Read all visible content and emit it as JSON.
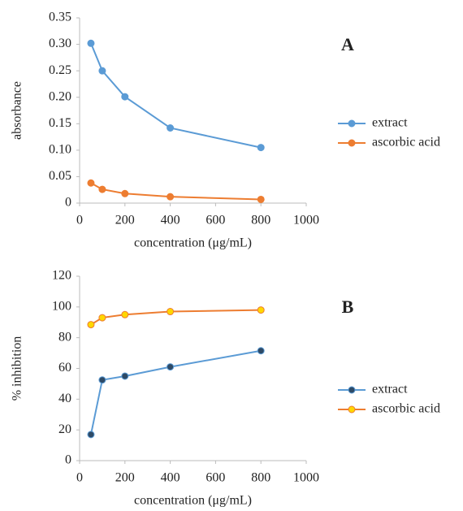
{
  "chart_data": [
    {
      "type": "line",
      "annotation": "A",
      "xlabel": "concentration (μg/mL)",
      "ylabel": "absorbance",
      "x": [
        50,
        100,
        200,
        400,
        800
      ],
      "series": [
        {
          "name": "extract",
          "color": "#5b9bd5",
          "marker_color": "#5b9bd5",
          "values": [
            0.302,
            0.25,
            0.201,
            0.142,
            0.105
          ]
        },
        {
          "name": "ascorbic acid",
          "color": "#ed7d31",
          "marker_color": "#ed7d31",
          "values": [
            0.038,
            0.026,
            0.018,
            0.012,
            0.007
          ]
        }
      ],
      "xlim": [
        0,
        1000
      ],
      "xticks": [
        0,
        200,
        400,
        600,
        800,
        1000
      ],
      "ylim": [
        0,
        0.35
      ],
      "yticks": [
        0,
        0.05,
        {
          "value": 0.1,
          "label": "0.10"
        },
        0.15,
        {
          "value": 0.2,
          "label": "0.20"
        },
        0.25,
        {
          "value": 0.3,
          "label": "0.30"
        },
        0.35
      ],
      "legend": "right",
      "grid": false
    },
    {
      "type": "line",
      "annotation": "B",
      "xlabel": "concentration (μg/mL)",
      "ylabel": "% inhibition",
      "x": [
        50,
        100,
        200,
        400,
        800
      ],
      "series": [
        {
          "name": "extract",
          "color": "#5b9bd5",
          "marker_color": "#2e4a66",
          "values": [
            17,
            52.5,
            55,
            61,
            71.5
          ]
        },
        {
          "name": "ascorbic acid",
          "color": "#ed7d31",
          "marker_color": "#ffd700",
          "values": [
            88.5,
            93,
            95,
            97,
            98
          ]
        }
      ],
      "xlim": [
        0,
        1000
      ],
      "xticks": [
        0,
        200,
        400,
        600,
        800,
        1000
      ],
      "ylim": [
        0,
        120
      ],
      "yticks": [
        0,
        20,
        40,
        60,
        80,
        100,
        120
      ],
      "legend": "right",
      "grid": false
    }
  ]
}
